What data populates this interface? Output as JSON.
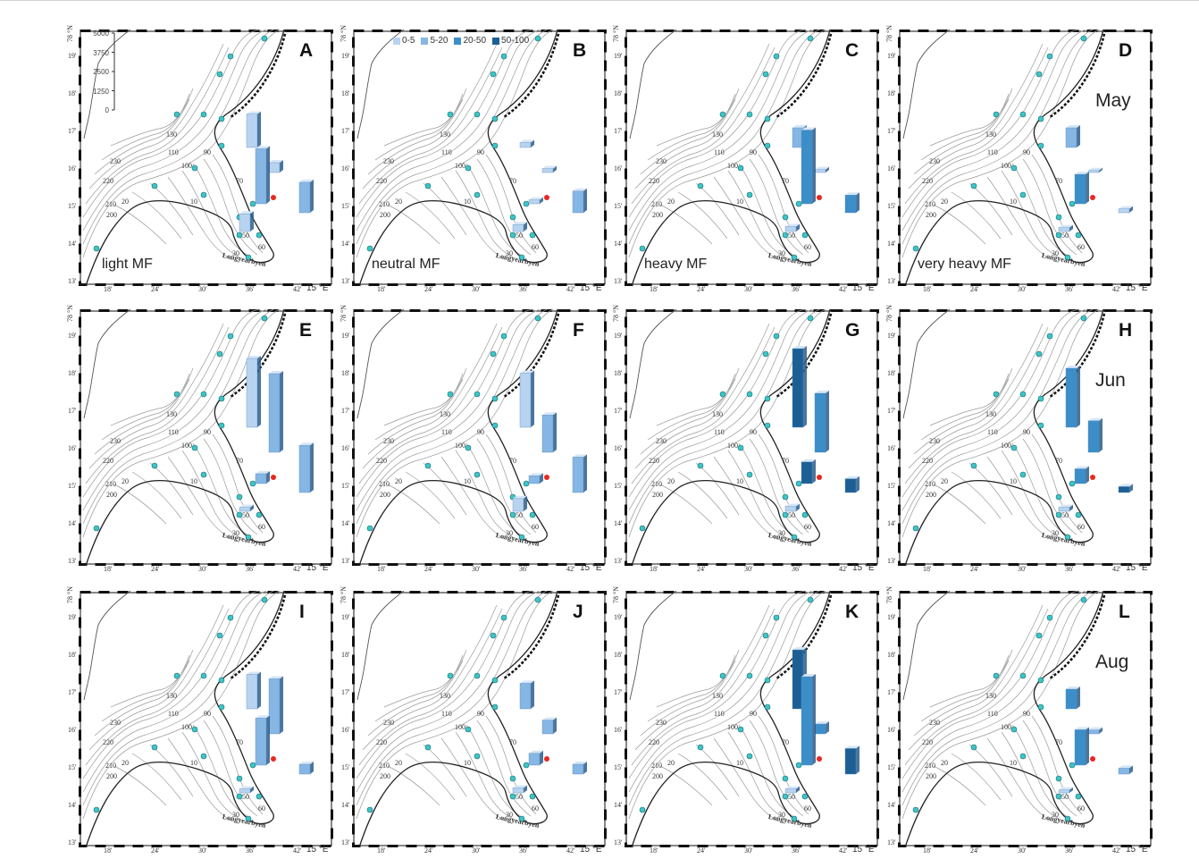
{
  "legend": [
    {
      "label": "0-5",
      "color": "#b8d3ef"
    },
    {
      "label": "5-20",
      "color": "#86b6e3"
    },
    {
      "label": "20-50",
      "color": "#3c8ec9"
    },
    {
      "label": "50-100",
      "color": "#1c5f95"
    }
  ],
  "scale_labels": [
    "5000",
    "3750",
    "2500",
    "1250",
    "0"
  ],
  "map_labels": {
    "town": "Longyearbyen",
    "lat_degree": "78 °N",
    "lat_ticks": [
      "19'",
      "18'",
      "17'",
      "16'",
      "15'",
      "14'",
      "13'"
    ],
    "lon_ticks": [
      "18'",
      "24'",
      "30'",
      "36'",
      "42'"
    ],
    "lon_unit": "15 °E",
    "depth_contours": [
      "230",
      "220",
      "210",
      "200",
      "130",
      "110",
      "100",
      "90",
      "70",
      "60",
      "50",
      "30",
      "20",
      "10"
    ]
  },
  "rows": [
    {
      "month": "May",
      "panels": [
        {
          "label": "A",
          "condition": "light MF",
          "bars": [
            [
              0.34,
              0
            ],
            [
              0.1,
              0
            ],
            [
              0.56,
              1
            ],
            [
              0.31,
              1
            ],
            [
              0.18,
              0
            ]
          ]
        },
        {
          "label": "B",
          "condition": "neutral MF",
          "bars": [
            [
              0.05,
              0
            ],
            [
              0.04,
              0
            ],
            [
              0.04,
              0
            ],
            [
              0.22,
              1
            ],
            [
              0.07,
              0
            ]
          ]
        },
        {
          "label": "C",
          "condition": "heavy MF",
          "bars": [
            [
              0.2,
              1
            ],
            [
              0.03,
              0
            ],
            [
              0.75,
              2
            ],
            [
              0.18,
              2
            ],
            [
              0.05,
              0
            ]
          ]
        },
        {
          "label": "D",
          "condition": "very heavy MF",
          "bars": [
            [
              0.2,
              1
            ],
            [
              0.02,
              0
            ],
            [
              0.3,
              2
            ],
            [
              0.04,
              0
            ],
            [
              0.04,
              0
            ]
          ]
        }
      ]
    },
    {
      "month": "Jun",
      "panels": [
        {
          "label": "E",
          "condition": "",
          "bars": [
            [
              0.7,
              0
            ],
            [
              0.8,
              1
            ],
            [
              0.1,
              1
            ],
            [
              0.48,
              1
            ],
            [
              0.04,
              0
            ]
          ]
        },
        {
          "label": "F",
          "condition": "",
          "bars": [
            [
              0.55,
              0
            ],
            [
              0.38,
              1
            ],
            [
              0.08,
              1
            ],
            [
              0.36,
              1
            ],
            [
              0.13,
              0
            ]
          ]
        },
        {
          "label": "G",
          "condition": "",
          "bars": [
            [
              0.8,
              3
            ],
            [
              0.6,
              2
            ],
            [
              0.22,
              3
            ],
            [
              0.14,
              3
            ],
            [
              0.05,
              0
            ]
          ]
        },
        {
          "label": "H",
          "condition": "",
          "bars": [
            [
              0.6,
              2
            ],
            [
              0.32,
              2
            ],
            [
              0.15,
              2
            ],
            [
              0.06,
              3
            ],
            [
              0.04,
              0
            ]
          ]
        }
      ]
    },
    {
      "month": "Aug",
      "panels": [
        {
          "label": "I",
          "condition": "",
          "bars": [
            [
              0.35,
              0
            ],
            [
              0.56,
              1
            ],
            [
              0.48,
              1
            ],
            [
              0.1,
              1
            ],
            [
              0.04,
              0
            ]
          ]
        },
        {
          "label": "J",
          "condition": "",
          "bars": [
            [
              0.26,
              1
            ],
            [
              0.14,
              1
            ],
            [
              0.12,
              1
            ],
            [
              0.1,
              1
            ],
            [
              0.05,
              0
            ]
          ]
        },
        {
          "label": "K",
          "condition": "",
          "bars": [
            [
              0.6,
              3
            ],
            [
              0.1,
              2
            ],
            [
              0.9,
              2
            ],
            [
              0.26,
              3
            ],
            [
              0.04,
              0
            ]
          ]
        },
        {
          "label": "L",
          "condition": "",
          "bars": [
            [
              0.2,
              2
            ],
            [
              0.04,
              1
            ],
            [
              0.36,
              2
            ],
            [
              0.06,
              1
            ],
            [
              0.03,
              0
            ]
          ]
        }
      ]
    }
  ]
}
